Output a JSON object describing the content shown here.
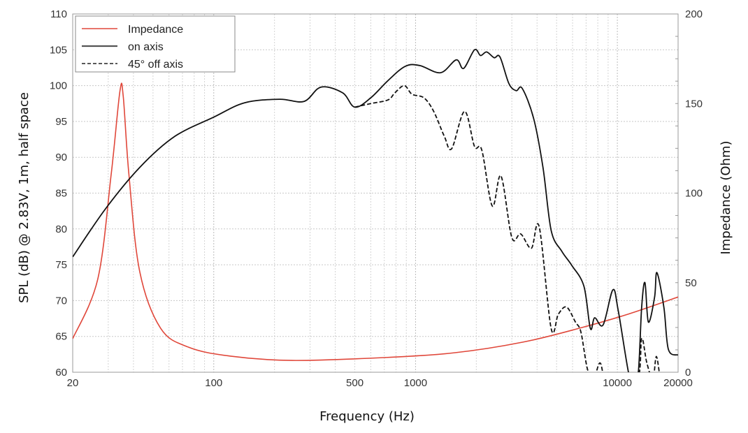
{
  "chart_data": {
    "type": "line",
    "xlabel": "Frequency (Hz)",
    "ylabel": "SPL (dB) @ 2.83V, 1m, half space",
    "y2label": "Impedance (Ohm)",
    "xscale": "log",
    "xlim": [
      20,
      20000
    ],
    "ylim": [
      60,
      110
    ],
    "y2lim": [
      0,
      200
    ],
    "grid": true,
    "legend_position": "top-left",
    "x_ticks": [
      "20",
      "100",
      "500",
      "1000",
      "10000",
      "20000"
    ],
    "y_ticks": [
      "60",
      "65",
      "70",
      "75",
      "80",
      "85",
      "90",
      "95",
      "100",
      "105",
      "110"
    ],
    "y2_ticks": [
      "0",
      "50",
      "100",
      "150",
      "200"
    ],
    "colors": {
      "impedance": "#e0473a",
      "on_axis": "#111111",
      "off_axis": "#111111"
    },
    "series": [
      {
        "name": "Impedance",
        "axis": "right",
        "style": "solid",
        "x": [
          20,
          26.6,
          31,
          34.3,
          35.6,
          38,
          43,
          54.5,
          75,
          121,
          245,
          700,
          1570,
          3400,
          6500,
          11300,
          20000
        ],
        "y": [
          18.7,
          51.9,
          110,
          157,
          154,
          110,
          56,
          24.6,
          14,
          9,
          6.6,
          8.2,
          10.9,
          16.8,
          24.6,
          32.4,
          42
        ]
      },
      {
        "name": "on axis",
        "axis": "left",
        "style": "solid",
        "x": [
          20,
          28.9,
          43,
          64,
          100,
          142,
          212,
          280,
          340,
          435,
          500,
          600,
          730,
          890,
          1050,
          1330,
          1590,
          1730,
          1960,
          2100,
          2250,
          2450,
          2620,
          2900,
          3150,
          3380,
          3850,
          4280,
          4700,
          5300,
          5950,
          6830,
          7350,
          7720,
          8500,
          9500,
          10100,
          11350,
          12000,
          12700,
          13200,
          13700,
          14250,
          15300,
          15700,
          17000,
          17900,
          20000
        ],
        "y": [
          76.1,
          82.7,
          88.6,
          92.9,
          95.6,
          97.6,
          98.1,
          97.8,
          99.8,
          99,
          97,
          98.3,
          100.7,
          102.7,
          102.8,
          101.8,
          103.6,
          102.4,
          105,
          104.2,
          104.7,
          103.9,
          104,
          100.3,
          99.3,
          99.6,
          95.4,
          88.6,
          79.8,
          76.9,
          74.9,
          72,
          66.1,
          67.6,
          66.6,
          71.5,
          68.6,
          60,
          58.5,
          60,
          69.1,
          72.5,
          67,
          70.5,
          73.9,
          69.1,
          63.2,
          62.4
        ]
      },
      {
        "name": "45° off axis",
        "axis": "left",
        "style": "dashed",
        "x": [
          500,
          600,
          730,
          790,
          880,
          960,
          1100,
          1230,
          1390,
          1510,
          1750,
          1960,
          2130,
          2400,
          2650,
          3000,
          3320,
          3750,
          4100,
          4700,
          5100,
          5600,
          6200,
          6600,
          7100,
          7600,
          8200,
          8700,
          10000,
          12600,
          13200,
          14000,
          15000,
          15600,
          16300
        ],
        "y": [
          97,
          97.5,
          98,
          99,
          100,
          98.8,
          98.3,
          96.4,
          92.9,
          91.2,
          96.4,
          91.5,
          91,
          83.2,
          87.4,
          78.8,
          79.3,
          77.3,
          80.3,
          66.1,
          68.1,
          69.1,
          67,
          65.6,
          60.5,
          59,
          61.3,
          59,
          58,
          59,
          64.7,
          61.3,
          59,
          62.2,
          59
        ]
      }
    ]
  }
}
